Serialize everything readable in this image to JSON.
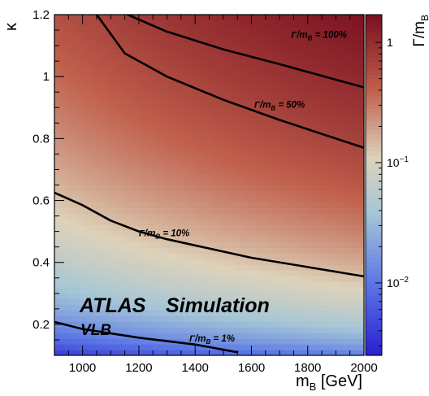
{
  "chart_data": {
    "type": "heatmap",
    "title": "",
    "xlabel": "m",
    "xlabel_sub": "B",
    "xlabel_unit": " [GeV]",
    "ylabel": "κ",
    "xlim": [
      900,
      2000
    ],
    "ylim": [
      0.1,
      1.2
    ],
    "xticks": [
      1000,
      1200,
      1400,
      1600,
      1800,
      2000
    ],
    "yticks": [
      0.2,
      0.4,
      0.6,
      0.8,
      1,
      1.2
    ],
    "z_scale": "log",
    "zlim": [
      0.0025,
      1.7
    ],
    "colorbar_title": "Γ/m",
    "colorbar_title_sub": "B",
    "colorbar_ticks": [
      {
        "value": 1,
        "label": "1"
      },
      {
        "value": 0.1,
        "label": "10",
        "sup": "−1"
      },
      {
        "value": 0.01,
        "label": "10",
        "sup": "−2"
      }
    ],
    "grid": false,
    "colors": {
      "low": "#2a1fd0",
      "mid": "#ddd2ba",
      "high": "#7a1020"
    },
    "contours": [
      {
        "label": "Γ/m",
        "label_sub": "B",
        "label_value": " = 100%",
        "label_at": [
          1840,
          1.125
        ],
        "points": [
          [
            1160,
            1.2
          ],
          [
            1300,
            1.145
          ],
          [
            1500,
            1.088
          ],
          [
            1700,
            1.04
          ],
          [
            1900,
            0.99
          ],
          [
            2000,
            0.965
          ]
        ]
      },
      {
        "label": "Γ/m",
        "label_sub": "B",
        "label_value": " = 50%",
        "label_at": [
          1700,
          0.9
        ],
        "points": [
          [
            1050,
            1.2
          ],
          [
            1150,
            1.075
          ],
          [
            1300,
            1.0
          ],
          [
            1500,
            0.925
          ],
          [
            1700,
            0.86
          ],
          [
            1900,
            0.8
          ],
          [
            2000,
            0.77
          ]
        ]
      },
      {
        "label": "Γ/m",
        "label_sub": "B",
        "label_value": " = 10%",
        "label_at": [
          1290,
          0.485
        ],
        "points": [
          [
            900,
            0.625
          ],
          [
            1000,
            0.585
          ],
          [
            1100,
            0.535
          ],
          [
            1200,
            0.5
          ],
          [
            1300,
            0.475
          ],
          [
            1400,
            0.455
          ],
          [
            1500,
            0.435
          ],
          [
            1600,
            0.415
          ],
          [
            1800,
            0.385
          ],
          [
            2000,
            0.355
          ]
        ]
      },
      {
        "label": "Γ/m",
        "label_sub": "B",
        "label_value": " = 1%",
        "label_at": [
          1460,
          0.145
        ],
        "points": [
          [
            900,
            0.208
          ],
          [
            1000,
            0.185
          ],
          [
            1200,
            0.157
          ],
          [
            1400,
            0.135
          ],
          [
            1550,
            0.11
          ]
        ]
      }
    ],
    "annotations": [
      "ATLAS",
      "Simulation",
      "VLB"
    ]
  }
}
